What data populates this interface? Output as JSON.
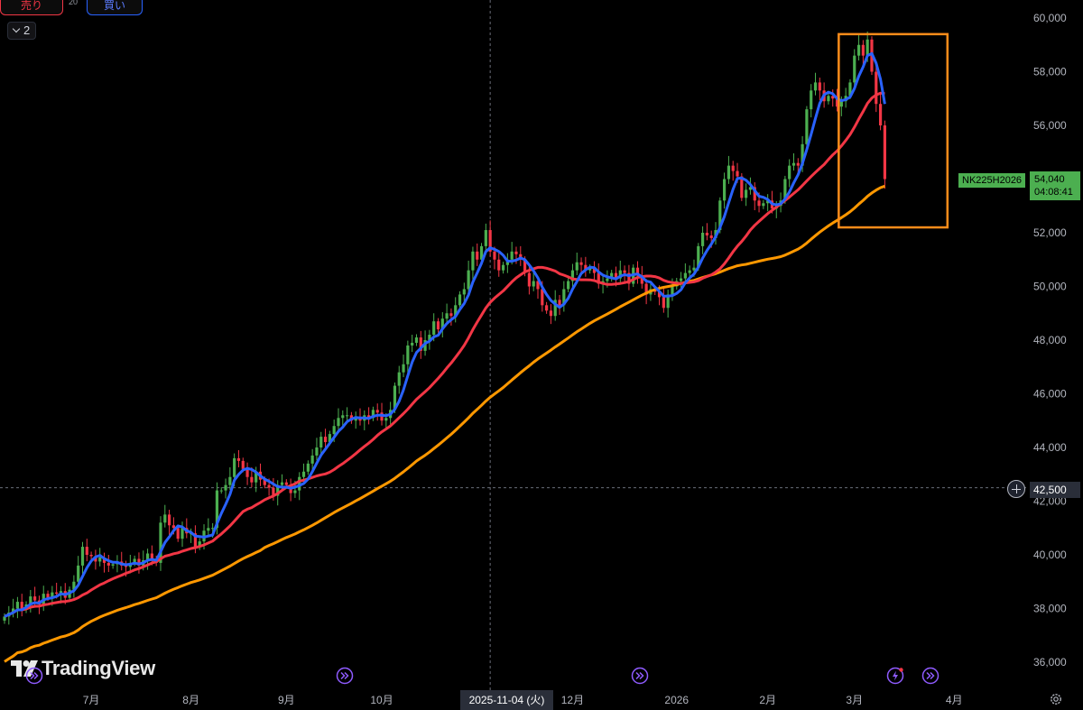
{
  "toolbar": {
    "sell_label": "売り",
    "buy_label": "買い",
    "spread": "20",
    "collapse_count": "2"
  },
  "brand": {
    "name": "TradingView"
  },
  "chart_data": {
    "type": "candlestick",
    "symbol": "NK225H2026",
    "last_price": "54,040",
    "countdown": "04:08:41",
    "crosshair_price": "42,500",
    "crosshair_date": "2025-11-04 (火)",
    "ylim": [
      35500,
      60500
    ],
    "yticks": [
      36000,
      38000,
      40000,
      42000,
      44000,
      46000,
      48000,
      50000,
      52000,
      54000,
      56000,
      58000,
      60000
    ],
    "ytick_labels": [
      "36,000",
      "38,000",
      "40,000",
      "42,000",
      "44,000",
      "46,000",
      "48,000",
      "50,000",
      "52,000",
      "54,000",
      "56,000",
      "58,000",
      "60,000"
    ],
    "xlabels": [
      {
        "label": "7月",
        "index": 20
      },
      {
        "label": "8月",
        "index": 43
      },
      {
        "label": "9月",
        "index": 65
      },
      {
        "label": "10月",
        "index": 87
      },
      {
        "label": "12月",
        "index": 131
      },
      {
        "label": "2026",
        "index": 155
      },
      {
        "label": "2月",
        "index": 176
      },
      {
        "label": "3月",
        "index": 196
      },
      {
        "label": "4月",
        "index": 219
      }
    ],
    "crosshair_index": 112,
    "total_slots": 232,
    "closes": [
      37700,
      37850,
      38000,
      38250,
      37950,
      38150,
      38450,
      38300,
      38150,
      38550,
      38400,
      38600,
      38550,
      38650,
      38400,
      38700,
      39000,
      39600,
      40300,
      40000,
      39950,
      39750,
      39900,
      39700,
      39600,
      39650,
      39750,
      39600,
      39550,
      39700,
      39850,
      39600,
      39800,
      40050,
      39850,
      39700,
      41200,
      41500,
      41100,
      41000,
      40600,
      41000,
      40800,
      40800,
      40300,
      40500,
      40900,
      41000,
      41000,
      42400,
      42400,
      42600,
      42900,
      43600,
      43500,
      43200,
      42900,
      42700,
      43100,
      42800,
      42600,
      42500,
      42200,
      42600,
      42700,
      42600,
      42300,
      42400,
      42900,
      43100,
      43400,
      43700,
      44000,
      44400,
      44200,
      44500,
      44800,
      45100,
      45200,
      45200,
      45000,
      45100,
      45000,
      45200,
      45100,
      45400,
      45300,
      45000,
      45100,
      45400,
      46300,
      46800,
      47100,
      47800,
      47900,
      48100,
      47600,
      48000,
      48200,
      48700,
      48400,
      48800,
      49000,
      48900,
      49300,
      49700,
      49900,
      50600,
      51300,
      51000,
      51500,
      52100,
      51300,
      51000,
      50600,
      50800,
      51000,
      51300,
      51200,
      51000,
      50500,
      50000,
      50200,
      49900,
      49300,
      49100,
      48900,
      49500,
      49300,
      49900,
      50200,
      50600,
      50900,
      50800,
      50600,
      50700,
      50500,
      50100,
      50200,
      50300,
      50500,
      50300,
      50600,
      50500,
      50100,
      50700,
      50400,
      50100,
      49700,
      49900,
      49800,
      49600,
      49200,
      49700,
      50000,
      50200,
      50300,
      50500,
      50600,
      50700,
      51500,
      52000,
      51900,
      51800,
      52100,
      53200,
      54000,
      54500,
      54300,
      54100,
      53300,
      53600,
      53700,
      53200,
      53000,
      53100,
      53200,
      52900,
      53000,
      53200,
      54000,
      54500,
      54600,
      54500,
      55300,
      56600,
      57300,
      57600,
      57300,
      56900,
      57100,
      57000,
      56700,
      56900,
      57100,
      57600,
      58600,
      59000,
      58600,
      59200,
      58000,
      56800,
      56000,
      54000
    ],
    "ma5_start": 0,
    "ma20_start": 0,
    "ma60_start": 0,
    "series": [
      {
        "name": "",
        "color": "#2962ff"
      },
      {
        "name": "",
        "color": "#f23645"
      },
      {
        "name": "",
        "color": "#ff9800"
      }
    ],
    "highlight_box": {
      "from_index": 193,
      "to_index": 206,
      "low": 52200,
      "high": 59400,
      "color": "#ff8c1a"
    }
  },
  "colors": {
    "up": "#4caf50",
    "down": "#f23645",
    "grid": "#1a1a1a",
    "axis_text": "#b2b5be",
    "event_icon": "#8f5bff"
  },
  "icons": {
    "settings": "gear-icon",
    "event": "fast-forward-circle-icon",
    "flash": "lightning-circle-icon"
  }
}
